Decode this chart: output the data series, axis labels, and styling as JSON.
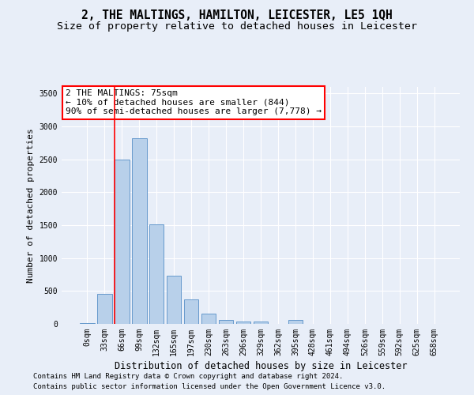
{
  "title": "2, THE MALTINGS, HAMILTON, LEICESTER, LE5 1QH",
  "subtitle": "Size of property relative to detached houses in Leicester",
  "xlabel": "Distribution of detached houses by size in Leicester",
  "ylabel": "Number of detached properties",
  "footer_line1": "Contains HM Land Registry data © Crown copyright and database right 2024.",
  "footer_line2": "Contains public sector information licensed under the Open Government Licence v3.0.",
  "bar_labels": [
    "0sqm",
    "33sqm",
    "66sqm",
    "99sqm",
    "132sqm",
    "165sqm",
    "197sqm",
    "230sqm",
    "263sqm",
    "296sqm",
    "329sqm",
    "362sqm",
    "395sqm",
    "428sqm",
    "461sqm",
    "494sqm",
    "526sqm",
    "559sqm",
    "592sqm",
    "625sqm",
    "658sqm"
  ],
  "bar_values": [
    15,
    460,
    2500,
    2820,
    1510,
    730,
    375,
    155,
    65,
    40,
    35,
    0,
    55,
    0,
    0,
    0,
    0,
    0,
    0,
    0,
    0
  ],
  "bar_color": "#b8d0ea",
  "bar_edge_color": "#6699cc",
  "ylim": [
    0,
    3600
  ],
  "yticks": [
    0,
    500,
    1000,
    1500,
    2000,
    2500,
    3000,
    3500
  ],
  "red_line_x": 2,
  "annotation_box_text": "2 THE MALTINGS: 75sqm\n← 10% of detached houses are smaller (844)\n90% of semi-detached houses are larger (7,778) →",
  "background_color": "#e8eef8",
  "grid_color": "#ffffff",
  "title_fontsize": 10.5,
  "subtitle_fontsize": 9.5,
  "xlabel_fontsize": 8.5,
  "ylabel_fontsize": 8,
  "tick_fontsize": 7,
  "annotation_fontsize": 8,
  "footer_fontsize": 6.5
}
